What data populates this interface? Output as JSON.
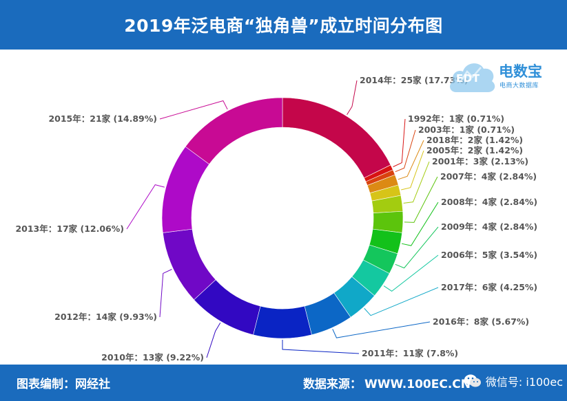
{
  "header": {
    "title": "2019年泛电商“独角兽”成立时间分布图"
  },
  "logo": {
    "cloud_text": "EDT",
    "brand": "电数宝",
    "subtitle": "电商大数据库"
  },
  "footer": {
    "credit": "图表编制：网经社",
    "source_label": "数据来源：",
    "source_value": "WWW.100EC.CN",
    "wechat": "微信号: i100ec"
  },
  "chart_data": {
    "type": "pie",
    "donut": true,
    "slices": [
      {
        "label": "2014年：25家 (17.73%)",
        "year": "2014",
        "value": 25,
        "percent": 17.73,
        "color": "#c4064a"
      },
      {
        "label": "1992年：1家 (0.71%)",
        "year": "1992",
        "value": 1,
        "percent": 0.71,
        "color": "#d81313"
      },
      {
        "label": "2003年：1家 (0.71%)",
        "year": "2003",
        "value": 1,
        "percent": 0.71,
        "color": "#d9430f"
      },
      {
        "label": "2018年：2家 (1.42%)",
        "year": "2018",
        "value": 2,
        "percent": 1.42,
        "color": "#dc8a14"
      },
      {
        "label": "2005年：2家 (1.42%)",
        "year": "2005",
        "value": 2,
        "percent": 1.42,
        "color": "#d7c418"
      },
      {
        "label": "2001年：3家 (2.13%)",
        "year": "2001",
        "value": 3,
        "percent": 2.13,
        "color": "#a3cc10"
      },
      {
        "label": "2007年：4家 (2.84%)",
        "year": "2007",
        "value": 4,
        "percent": 2.84,
        "color": "#5cc40c"
      },
      {
        "label": "2008年：4家 (2.84%)",
        "year": "2008",
        "value": 4,
        "percent": 2.84,
        "color": "#13c11a"
      },
      {
        "label": "2009年：4家 (2.84%)",
        "year": "2009",
        "value": 4,
        "percent": 2.84,
        "color": "#14c65c"
      },
      {
        "label": "2006年：5家 (3.54%)",
        "year": "2006",
        "value": 5,
        "percent": 3.54,
        "color": "#14c8a0"
      },
      {
        "label": "2017年：6家 (4.25%)",
        "year": "2017",
        "value": 6,
        "percent": 4.25,
        "color": "#10a8c8"
      },
      {
        "label": "2016年：8家 (5.67%)",
        "year": "2016",
        "value": 8,
        "percent": 5.67,
        "color": "#0c67c6"
      },
      {
        "label": "2011年：11家 (7.8%)",
        "year": "2011",
        "value": 11,
        "percent": 7.8,
        "color": "#0a24c4"
      },
      {
        "label": "2010年：13家 (9.22%)",
        "year": "2010",
        "value": 13,
        "percent": 9.22,
        "color": "#3208c2"
      },
      {
        "label": "2012年：14家 (9.93%)",
        "year": "2012",
        "value": 14,
        "percent": 9.93,
        "color": "#7008c6"
      },
      {
        "label": "2013年：17家 (12.06%)",
        "year": "2013",
        "value": 17,
        "percent": 12.06,
        "color": "#ae0ac8"
      },
      {
        "label": "2015年：21家 (14.89%)",
        "year": "2015",
        "value": 21,
        "percent": 14.89,
        "color": "#c80a94"
      }
    ]
  }
}
